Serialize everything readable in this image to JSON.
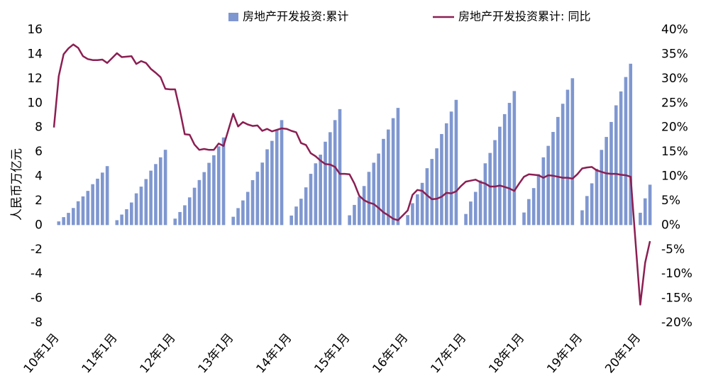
{
  "chart_data": {
    "type": "bar-line",
    "y_label": "人民币万亿元",
    "categories": [
      "10年1月",
      null,
      null,
      null,
      null,
      null,
      null,
      null,
      null,
      null,
      null,
      null,
      "11年1月",
      null,
      null,
      null,
      null,
      null,
      null,
      null,
      null,
      null,
      null,
      null,
      "12年1月",
      null,
      null,
      null,
      null,
      null,
      null,
      null,
      null,
      null,
      null,
      null,
      "13年1月",
      null,
      null,
      null,
      null,
      null,
      null,
      null,
      null,
      null,
      null,
      null,
      "14年1月",
      null,
      null,
      null,
      null,
      null,
      null,
      null,
      null,
      null,
      null,
      null,
      "15年1月",
      null,
      null,
      null,
      null,
      null,
      null,
      null,
      null,
      null,
      null,
      null,
      "16年1月",
      null,
      null,
      null,
      null,
      null,
      null,
      null,
      null,
      null,
      null,
      null,
      "17年1月",
      null,
      null,
      null,
      null,
      null,
      null,
      null,
      null,
      null,
      null,
      null,
      "18年1月",
      null,
      null,
      null,
      null,
      null,
      null,
      null,
      null,
      null,
      null,
      null,
      "19年1月",
      null,
      null,
      null,
      null,
      null,
      null,
      null,
      null,
      null,
      null,
      null,
      "20年1月",
      null,
      null,
      null
    ],
    "series": [
      {
        "name": "房地产开发投资:累计",
        "type": "bar",
        "color": "#7f97d0",
        "values": [
          null,
          0.3,
          0.65,
          1.0,
          1.4,
          1.95,
          2.35,
          2.8,
          3.35,
          3.8,
          4.3,
          4.83,
          null,
          0.4,
          0.86,
          1.3,
          1.85,
          2.6,
          3.15,
          3.77,
          4.46,
          5.0,
          5.55,
          6.17,
          null,
          0.53,
          1.07,
          1.62,
          2.27,
          3.06,
          3.69,
          4.34,
          5.1,
          5.72,
          6.45,
          7.18,
          null,
          0.68,
          1.39,
          2.02,
          2.72,
          3.68,
          4.37,
          5.12,
          6.21,
          6.9,
          7.81,
          8.6,
          null,
          0.78,
          1.52,
          2.16,
          3.09,
          4.2,
          5.06,
          5.77,
          6.83,
          7.61,
          8.6,
          9.5,
          null,
          0.8,
          1.65,
          2.32,
          3.2,
          4.36,
          5.11,
          5.86,
          7.06,
          7.83,
          8.76,
          9.6,
          null,
          0.82,
          1.79,
          2.52,
          3.46,
          4.66,
          5.42,
          6.29,
          7.46,
          8.34,
          9.3,
          10.26,
          null,
          0.91,
          1.93,
          2.72,
          3.66,
          5.06,
          5.91,
          6.96,
          8.06,
          9.09,
          10.01,
          10.98,
          null,
          1.03,
          2.13,
          3.03,
          4.17,
          5.55,
          6.49,
          7.63,
          8.86,
          9.94,
          11.09,
          12.03,
          null,
          1.21,
          2.38,
          3.42,
          4.61,
          6.16,
          7.22,
          8.45,
          9.81,
          10.95,
          12.13,
          13.22,
          null,
          1.01,
          2.19,
          3.31
        ]
      },
      {
        "name": "房地产开发投资累计: 同比",
        "type": "line",
        "axis": "y2",
        "color": "#8b1f52",
        "values": [
          20,
          30.5,
          35,
          36.2,
          37,
          36.3,
          34.6,
          34,
          33.8,
          33.8,
          33.9,
          33.2,
          34.2,
          35.2,
          34.4,
          34.5,
          34.6,
          33,
          33.6,
          33.2,
          32,
          31.2,
          30.3,
          27.9,
          27.8,
          27.8,
          23.5,
          18.6,
          18.5,
          16.5,
          15.4,
          15.6,
          15.4,
          15.4,
          16.7,
          16.2,
          19.5,
          22.8,
          20.2,
          21.1,
          20.6,
          20.3,
          20.4,
          19.3,
          19.7,
          19.2,
          19.5,
          19.8,
          19.7,
          19.3,
          19,
          16.8,
          16.4,
          14.7,
          14.1,
          13.2,
          12.5,
          12.4,
          11.9,
          10.5,
          10.5,
          10.4,
          8.5,
          6,
          5.1,
          4.6,
          4.3,
          3.5,
          2.6,
          2,
          1.3,
          1,
          2,
          3,
          6.2,
          7.2,
          7,
          6.1,
          5.3,
          5.4,
          5.8,
          6.6,
          6.5,
          6.9,
          8,
          8.9,
          9.1,
          9.3,
          8.8,
          8.5,
          7.9,
          7.9,
          8.1,
          7.8,
          7.5,
          7,
          8.5,
          9.9,
          10.4,
          10.3,
          10.2,
          9.7,
          10.2,
          10.1,
          9.9,
          9.7,
          9.7,
          9.5,
          10.4,
          11.6,
          11.8,
          11.9,
          11.2,
          10.9,
          10.6,
          10.5,
          10.5,
          10.3,
          10.2,
          9.9,
          -3.2,
          -16.3,
          -7.7,
          -3.3
        ]
      }
    ],
    "ylim": [
      -8,
      16
    ],
    "yticks": [
      -8,
      -6,
      -4,
      -2,
      0,
      2,
      4,
      6,
      8,
      10,
      12,
      14,
      16
    ],
    "y2lim": [
      -20,
      40
    ],
    "y2ticks": [
      {
        "value": -20,
        "label": "-20%"
      },
      {
        "value": -15,
        "label": "-15%"
      },
      {
        "value": -10,
        "label": "-10%"
      },
      {
        "value": -5,
        "label": "-5%"
      },
      {
        "value": 0,
        "label": "0%"
      },
      {
        "value": 5,
        "label": "5%"
      },
      {
        "value": 10,
        "label": "10%"
      },
      {
        "value": 15,
        "label": "15%"
      },
      {
        "value": 20,
        "label": "20%"
      },
      {
        "value": 25,
        "label": "25%"
      },
      {
        "value": 30,
        "label": "30%"
      },
      {
        "value": 35,
        "label": "35%"
      },
      {
        "value": 40,
        "label": "40%"
      }
    ],
    "grid": false,
    "legend": "top"
  }
}
